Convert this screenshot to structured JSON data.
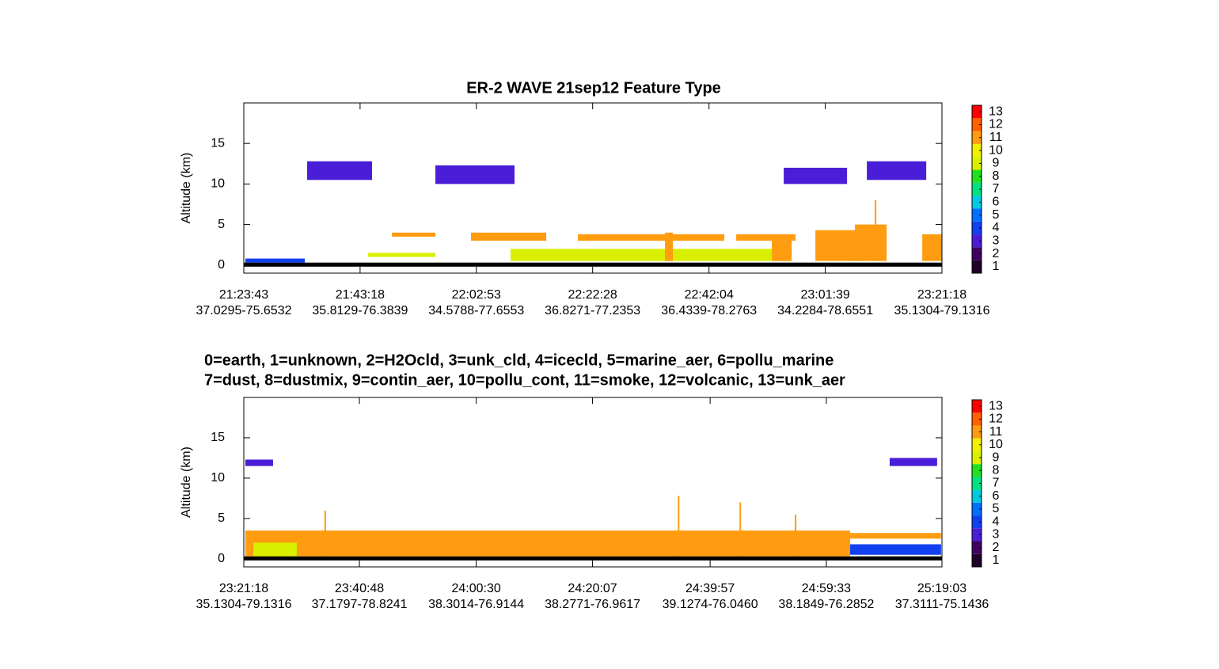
{
  "chart_data": [
    {
      "type": "curtain",
      "title": "ER-2 WAVE  21sep12  Feature Type",
      "ylabel": "Altitude (km)",
      "xlim": [
        77023,
        84078
      ],
      "xticks": [
        {
          "value": 77023,
          "label": "21:23:43"
        },
        {
          "value": 78198,
          "label": "21:43:18"
        },
        {
          "value": 79373,
          "label": "22:02:53"
        },
        {
          "value": 80548,
          "label": "22:22:28"
        },
        {
          "value": 81724,
          "label": "22:42:04"
        },
        {
          "value": 82899,
          "label": "23:01:39"
        },
        {
          "value": 84078,
          "label": "23:21:18"
        }
      ],
      "xtick_positions": [
        "37.0295-75.6532",
        "35.8129-76.3839",
        "34.5788-77.6553",
        "36.8271-77.2353",
        "36.4339-78.2763",
        "34.2284-78.6551",
        "35.1304-79.1316"
      ],
      "ylim": [
        -1,
        20
      ],
      "yticks": [
        0,
        5,
        10,
        15
      ],
      "features": [
        {
          "type": 4,
          "x": [
            77039,
            77639
          ],
          "y": [
            0.3,
            0.8
          ]
        },
        {
          "type": 3,
          "x": [
            77663,
            78319
          ],
          "y": [
            10.5,
            12.8
          ]
        },
        {
          "type": 3,
          "x": [
            78959,
            79759
          ],
          "y": [
            10,
            12.3
          ]
        },
        {
          "type": 3,
          "x": [
            82479,
            83119
          ],
          "y": [
            10,
            12
          ]
        },
        {
          "type": 3,
          "x": [
            83319,
            83919
          ],
          "y": [
            10.5,
            12.8
          ]
        },
        {
          "type": 9,
          "x": [
            78279,
            78959
          ],
          "y": [
            1,
            1.5
          ]
        },
        {
          "type": 9,
          "x": [
            79719,
            82559
          ],
          "y": [
            0.5,
            2
          ]
        },
        {
          "type": 11,
          "x": [
            78519,
            78959
          ],
          "y": [
            3.5,
            4
          ]
        },
        {
          "type": 11,
          "x": [
            79319,
            80079
          ],
          "y": [
            3,
            4
          ]
        },
        {
          "type": 11,
          "x": [
            80399,
            81879
          ],
          "y": [
            3,
            3.8
          ]
        },
        {
          "type": 11,
          "x": [
            81279,
            81359
          ],
          "y": [
            0.5,
            4
          ]
        },
        {
          "type": 11,
          "x": [
            81999,
            82599
          ],
          "y": [
            3,
            3.8
          ]
        },
        {
          "type": 11,
          "x": [
            82359,
            82559
          ],
          "y": [
            0.5,
            3
          ]
        },
        {
          "type": 11,
          "x": [
            82799,
            83239
          ],
          "y": [
            0.5,
            4.3
          ]
        },
        {
          "type": 11,
          "x": [
            83199,
            83519
          ],
          "y": [
            0.5,
            5
          ]
        },
        {
          "type": 11,
          "x": [
            83399,
            83415
          ],
          "y": [
            0.5,
            8
          ]
        },
        {
          "type": 11,
          "x": [
            83879,
            84078
          ],
          "y": [
            0.5,
            3.8
          ]
        },
        {
          "type": 0,
          "x": [
            77023,
            84078
          ],
          "y": [
            -0.2,
            0.3
          ]
        }
      ]
    },
    {
      "type": "curtain",
      "ylabel": "Altitude (km)",
      "xlim": [
        84078,
        91143
      ],
      "xticks": [
        {
          "value": 84078,
          "label": "23:21:18"
        },
        {
          "value": 85248,
          "label": "23:40:48"
        },
        {
          "value": 86430,
          "label": "24:00:30"
        },
        {
          "value": 87607,
          "label": "24:20:07"
        },
        {
          "value": 88797,
          "label": "24:39:57"
        },
        {
          "value": 89973,
          "label": "24:59:33"
        },
        {
          "value": 91143,
          "label": "25:19:03"
        }
      ],
      "xtick_positions": [
        "35.1304-79.1316",
        "37.1797-78.8241",
        "38.3014-76.9144",
        "38.2771-76.9617",
        "39.1274-76.0460",
        "38.1849-76.2852",
        "37.3111-75.1436"
      ],
      "ylim": [
        -1,
        20
      ],
      "yticks": [
        0,
        5,
        10,
        15
      ],
      "features": [
        {
          "type": 3,
          "x": [
            84094,
            84374
          ],
          "y": [
            11.5,
            12.3
          ]
        },
        {
          "type": 3,
          "x": [
            90614,
            91094
          ],
          "y": [
            11.5,
            12.5
          ]
        },
        {
          "type": 11,
          "x": [
            84094,
            90214
          ],
          "y": [
            0.3,
            3.5
          ]
        },
        {
          "type": 11,
          "x": [
            90214,
            91134
          ],
          "y": [
            2.5,
            3.2
          ]
        },
        {
          "type": 9,
          "x": [
            84174,
            84614
          ],
          "y": [
            0.3,
            2
          ]
        },
        {
          "type": 4,
          "x": [
            90214,
            91134
          ],
          "y": [
            0.5,
            1.8
          ]
        },
        {
          "type": 11,
          "x": [
            84894,
            84910
          ],
          "y": [
            0,
            6
          ]
        },
        {
          "type": 11,
          "x": [
            88470,
            88486
          ],
          "y": [
            0,
            7.8
          ]
        },
        {
          "type": 11,
          "x": [
            89094,
            89110
          ],
          "y": [
            0,
            7
          ]
        },
        {
          "type": 11,
          "x": [
            89654,
            89670
          ],
          "y": [
            0,
            5.5
          ]
        },
        {
          "type": 0,
          "x": [
            84078,
            91143
          ],
          "y": [
            -0.2,
            0.3
          ]
        }
      ]
    }
  ],
  "colorbar": {
    "lim": [
      0.5,
      13.5
    ],
    "ticks": [
      1,
      2,
      3,
      4,
      5,
      6,
      7,
      8,
      9,
      10,
      11,
      12,
      13
    ]
  },
  "type_colors": [
    "#000000",
    "#200028",
    "#400060",
    "#4a1ed8",
    "#1040f0",
    "#0070ff",
    "#00c8e0",
    "#00e080",
    "#20e020",
    "#d8f000",
    "#f0f000",
    "#ff9c10",
    "#ff6000",
    "#ff0000"
  ],
  "type_legend": [
    "0=earth, 1=unknown, 2=H2Ocld, 3=unk_cld, 4=icecld, 5=marine_aer, 6=pollu_marine",
    "7=dust, 8=dustmix, 9=contin_aer, 10=pollu_cont, 11=smoke, 12=volcanic, 13=unk_aer"
  ]
}
